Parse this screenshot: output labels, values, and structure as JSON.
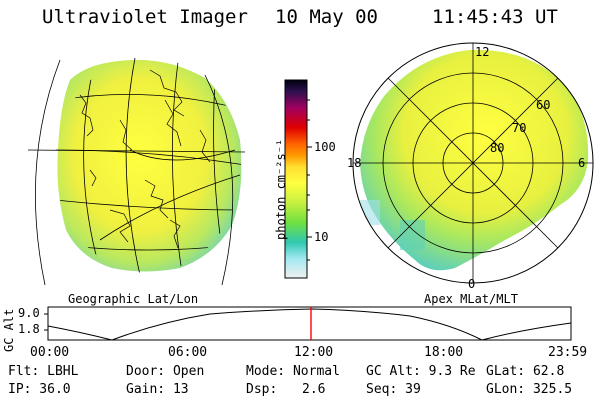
{
  "header": {
    "instrument": "Ultraviolet Imager",
    "date": "10 May 00",
    "time": "11:45:43 UT"
  },
  "colorbar": {
    "unit_label": "photon cm⁻²s⁻¹",
    "ticks": [
      "100",
      "10"
    ]
  },
  "left_map": {
    "caption": "Geographic Lat/Lon"
  },
  "right_map": {
    "caption": "Apex MLat/MLT",
    "mlt_labels": {
      "top": "12",
      "left": "18",
      "right": "6",
      "bottom": "0"
    },
    "mlat_labels": [
      "60",
      "70",
      "80"
    ]
  },
  "altitude_plot": {
    "ylabel": "GC Alt",
    "yticks": [
      "9.0",
      "1.8"
    ],
    "xticks": [
      "00:00",
      "06:00",
      "12:00",
      "18:00",
      "23:59"
    ],
    "marker_time": "11:45:43"
  },
  "status": {
    "flt": "Flt: LBHL",
    "ip": "IP: 36.0",
    "door": "Door: Open",
    "gain": "Gain: 13",
    "mode": "Mode: Normal",
    "dsp_label": "Dsp:",
    "dsp_value": "2.6",
    "gc_alt": "GC Alt: 9.3 Re",
    "seq": "Seq: 39",
    "glat": "GLat:  62.8",
    "glon": "GLon: 325.5"
  },
  "colors": {
    "marker": "#ff0000",
    "background": "#ffffff"
  }
}
